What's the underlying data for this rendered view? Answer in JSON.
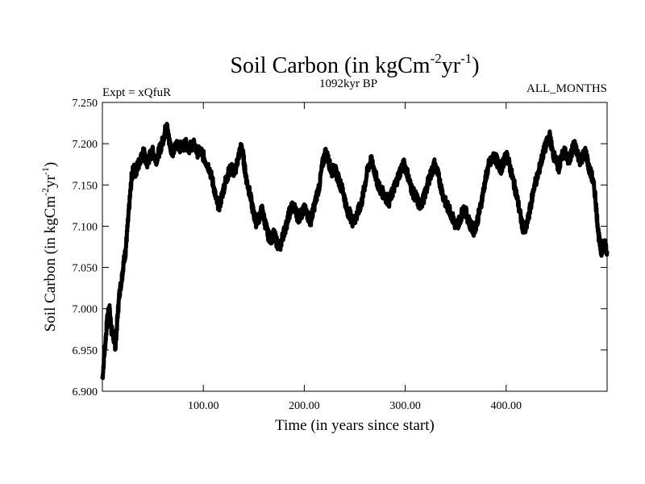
{
  "chart_data": {
    "type": "line",
    "title": {
      "base": "Soil Carbon (in kgCm",
      "sup1": "-2",
      "mid": "yr",
      "sup2": "-1",
      "end": ")"
    },
    "subtitle_left": "Expt = xQfuR",
    "subtitle_center": "1092kyr BP",
    "subtitle_right": "ALL_MONTHS",
    "xlabel": "Time (in years since start)",
    "ylabel": {
      "base": "Soil Carbon (in kgCm",
      "sup1": "-2",
      "mid": "yr",
      "sup2": "-1",
      "end": ")"
    },
    "xlim": [
      0,
      500
    ],
    "ylim": [
      6.9,
      7.25
    ],
    "xticks": [
      100,
      200,
      300,
      400
    ],
    "xtick_labels": [
      "100.00",
      "200.00",
      "300.00",
      "400.00"
    ],
    "yticks": [
      6.9,
      6.95,
      7.0,
      7.05,
      7.1,
      7.15,
      7.2,
      7.25
    ],
    "ytick_labels": [
      "6.900",
      "6.950",
      "7.000",
      "7.050",
      "7.100",
      "7.150",
      "7.200",
      "7.250"
    ],
    "grid": false,
    "color": "#000000",
    "series": [
      {
        "name": "Soil Carbon",
        "points": [
          [
            0,
            6.915
          ],
          [
            3,
            6.96
          ],
          [
            5,
            6.99
          ],
          [
            7,
            7.0
          ],
          [
            9,
            6.975
          ],
          [
            11,
            6.965
          ],
          [
            13,
            6.955
          ],
          [
            15,
            6.99
          ],
          [
            17,
            7.02
          ],
          [
            19,
            7.035
          ],
          [
            21,
            7.055
          ],
          [
            23,
            7.07
          ],
          [
            25,
            7.1
          ],
          [
            27,
            7.13
          ],
          [
            29,
            7.16
          ],
          [
            31,
            7.17
          ],
          [
            33,
            7.165
          ],
          [
            35,
            7.175
          ],
          [
            38,
            7.18
          ],
          [
            41,
            7.19
          ],
          [
            44,
            7.175
          ],
          [
            47,
            7.185
          ],
          [
            50,
            7.19
          ],
          [
            53,
            7.18
          ],
          [
            56,
            7.19
          ],
          [
            59,
            7.2
          ],
          [
            62,
            7.215
          ],
          [
            64,
            7.22
          ],
          [
            66,
            7.205
          ],
          [
            68,
            7.195
          ],
          [
            70,
            7.19
          ],
          [
            74,
            7.2
          ],
          [
            78,
            7.195
          ],
          [
            82,
            7.2
          ],
          [
            86,
            7.195
          ],
          [
            90,
            7.2
          ],
          [
            94,
            7.19
          ],
          [
            98,
            7.19
          ],
          [
            102,
            7.18
          ],
          [
            106,
            7.17
          ],
          [
            110,
            7.15
          ],
          [
            113,
            7.13
          ],
          [
            116,
            7.125
          ],
          [
            119,
            7.14
          ],
          [
            122,
            7.155
          ],
          [
            125,
            7.165
          ],
          [
            128,
            7.17
          ],
          [
            131,
            7.165
          ],
          [
            134,
            7.18
          ],
          [
            137,
            7.195
          ],
          [
            139,
            7.19
          ],
          [
            141,
            7.17
          ],
          [
            143,
            7.155
          ],
          [
            146,
            7.14
          ],
          [
            149,
            7.12
          ],
          [
            152,
            7.105
          ],
          [
            155,
            7.11
          ],
          [
            158,
            7.12
          ],
          [
            161,
            7.105
          ],
          [
            164,
            7.09
          ],
          [
            167,
            7.085
          ],
          [
            170,
            7.09
          ],
          [
            173,
            7.08
          ],
          [
            176,
            7.075
          ],
          [
            179,
            7.09
          ],
          [
            182,
            7.1
          ],
          [
            185,
            7.115
          ],
          [
            188,
            7.125
          ],
          [
            191,
            7.12
          ],
          [
            194,
            7.11
          ],
          [
            197,
            7.115
          ],
          [
            200,
            7.12
          ],
          [
            203,
            7.115
          ],
          [
            206,
            7.105
          ],
          [
            209,
            7.12
          ],
          [
            212,
            7.135
          ],
          [
            215,
            7.15
          ],
          [
            218,
            7.175
          ],
          [
            221,
            7.19
          ],
          [
            224,
            7.18
          ],
          [
            227,
            7.165
          ],
          [
            230,
            7.17
          ],
          [
            233,
            7.16
          ],
          [
            236,
            7.15
          ],
          [
            239,
            7.14
          ],
          [
            242,
            7.12
          ],
          [
            245,
            7.115
          ],
          [
            248,
            7.105
          ],
          [
            251,
            7.11
          ],
          [
            254,
            7.12
          ],
          [
            257,
            7.13
          ],
          [
            260,
            7.15
          ],
          [
            263,
            7.17
          ],
          [
            266,
            7.18
          ],
          [
            269,
            7.17
          ],
          [
            272,
            7.155
          ],
          [
            275,
            7.145
          ],
          [
            278,
            7.14
          ],
          [
            281,
            7.135
          ],
          [
            284,
            7.13
          ],
          [
            287,
            7.14
          ],
          [
            290,
            7.15
          ],
          [
            293,
            7.16
          ],
          [
            296,
            7.17
          ],
          [
            299,
            7.175
          ],
          [
            302,
            7.165
          ],
          [
            305,
            7.15
          ],
          [
            308,
            7.14
          ],
          [
            311,
            7.135
          ],
          [
            314,
            7.125
          ],
          [
            317,
            7.13
          ],
          [
            320,
            7.14
          ],
          [
            323,
            7.155
          ],
          [
            326,
            7.165
          ],
          [
            329,
            7.175
          ],
          [
            332,
            7.165
          ],
          [
            335,
            7.15
          ],
          [
            338,
            7.135
          ],
          [
            341,
            7.125
          ],
          [
            344,
            7.12
          ],
          [
            347,
            7.11
          ],
          [
            350,
            7.1
          ],
          [
            353,
            7.105
          ],
          [
            356,
            7.115
          ],
          [
            359,
            7.12
          ],
          [
            362,
            7.11
          ],
          [
            365,
            7.1
          ],
          [
            368,
            7.095
          ],
          [
            371,
            7.105
          ],
          [
            374,
            7.12
          ],
          [
            377,
            7.14
          ],
          [
            380,
            7.16
          ],
          [
            383,
            7.175
          ],
          [
            386,
            7.18
          ],
          [
            389,
            7.185
          ],
          [
            392,
            7.175
          ],
          [
            395,
            7.17
          ],
          [
            398,
            7.18
          ],
          [
            401,
            7.185
          ],
          [
            404,
            7.17
          ],
          [
            407,
            7.155
          ],
          [
            410,
            7.14
          ],
          [
            413,
            7.12
          ],
          [
            416,
            7.1
          ],
          [
            419,
            7.095
          ],
          [
            422,
            7.11
          ],
          [
            425,
            7.13
          ],
          [
            428,
            7.15
          ],
          [
            431,
            7.16
          ],
          [
            434,
            7.175
          ],
          [
            437,
            7.19
          ],
          [
            440,
            7.2
          ],
          [
            443,
            7.21
          ],
          [
            446,
            7.19
          ],
          [
            449,
            7.18
          ],
          [
            452,
            7.17
          ],
          [
            455,
            7.185
          ],
          [
            458,
            7.19
          ],
          [
            461,
            7.18
          ],
          [
            464,
            7.185
          ],
          [
            467,
            7.2
          ],
          [
            470,
            7.19
          ],
          [
            473,
            7.18
          ],
          [
            476,
            7.185
          ],
          [
            479,
            7.19
          ],
          [
            482,
            7.17
          ],
          [
            485,
            7.16
          ],
          [
            488,
            7.14
          ],
          [
            490,
            7.11
          ],
          [
            492,
            7.085
          ],
          [
            494,
            7.07
          ],
          [
            496,
            7.075
          ],
          [
            498,
            7.08
          ],
          [
            500,
            7.07
          ]
        ]
      }
    ]
  }
}
